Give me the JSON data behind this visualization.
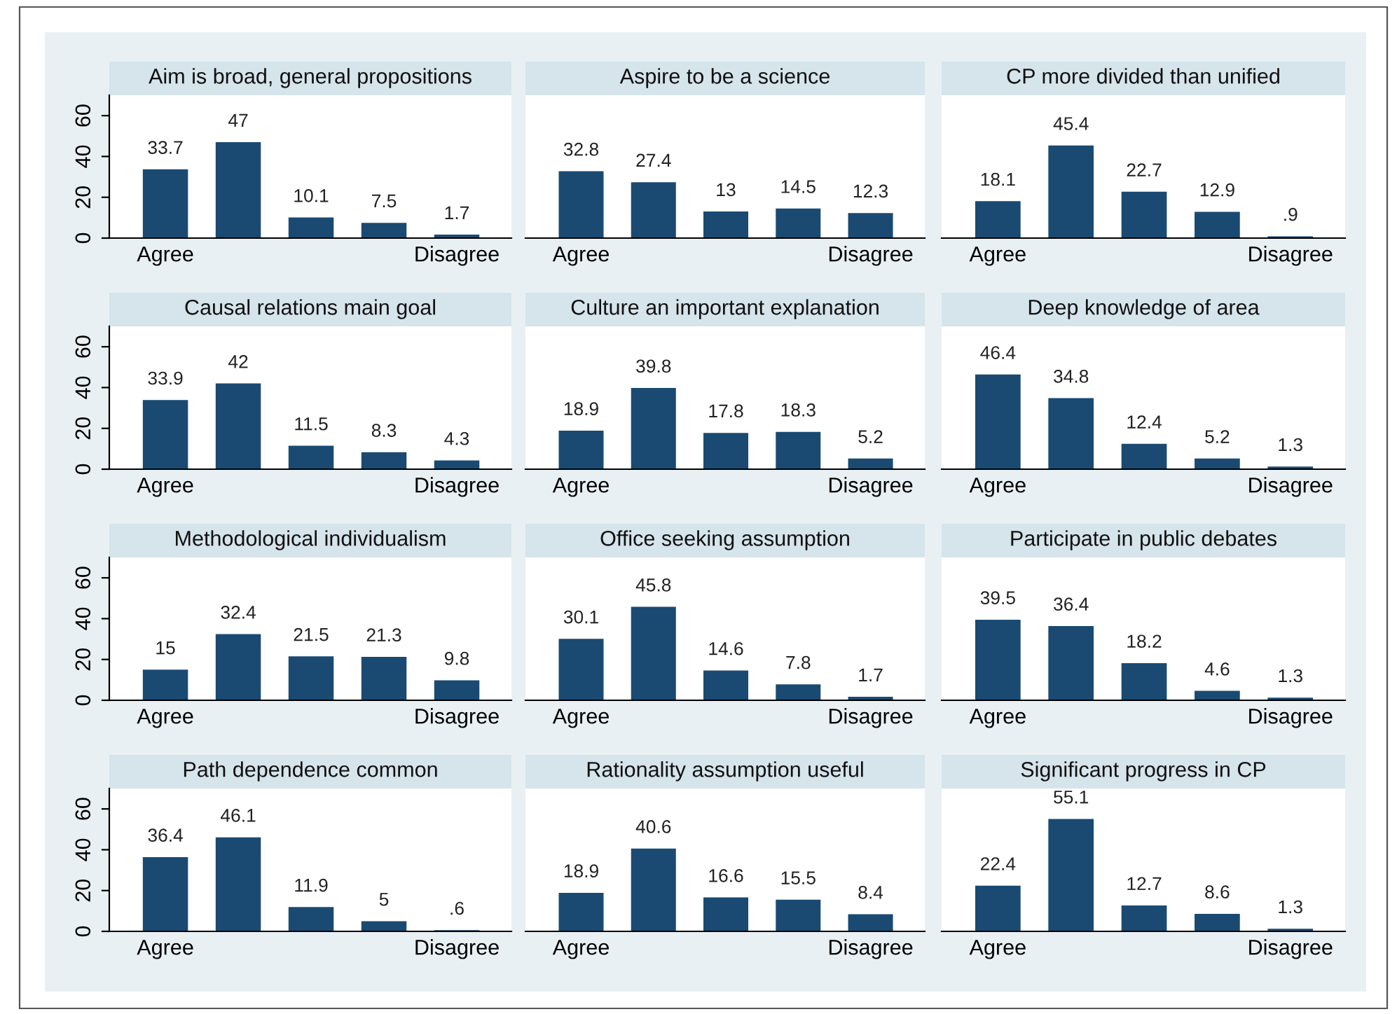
{
  "chart_data": [
    {
      "type": "bar",
      "title": "Aim is broad, general propositions",
      "categories": [
        "Agree",
        null,
        null,
        null,
        "Disagree"
      ],
      "values": [
        33.7,
        47,
        10.1,
        7.5,
        1.7
      ],
      "value_labels": [
        "33.7",
        "47",
        "10.1",
        "7.5",
        "1.7"
      ],
      "color": "#1a4a72",
      "ylim": [
        0,
        70
      ],
      "yticks": [
        0,
        20,
        40,
        60
      ]
    },
    {
      "type": "bar",
      "title": "Aspire to be a science",
      "categories": [
        "Agree",
        null,
        null,
        null,
        "Disagree"
      ],
      "values": [
        32.8,
        27.4,
        13,
        14.5,
        12.3
      ],
      "value_labels": [
        "32.8",
        "27.4",
        "13",
        "14.5",
        "12.3"
      ],
      "color": "#1a4a72",
      "ylim": [
        0,
        70
      ],
      "tick_labels": "x"
    },
    {
      "type": "bar",
      "title": "CP more divided than unified",
      "categories": [
        "Agree",
        null,
        null,
        null,
        "Disagree"
      ],
      "values": [
        18.1,
        45.4,
        22.7,
        12.9,
        0.9
      ],
      "value_labels": [
        "18.1",
        "45.4",
        "22.7",
        "12.9",
        ".9"
      ],
      "color": "#1a4a72",
      "ylim": [
        0,
        70
      ],
      "tick_labels": "x"
    },
    {
      "type": "bar",
      "title": "Causal relations main goal",
      "categories": [
        "Agree",
        null,
        null,
        null,
        "Disagree"
      ],
      "values": [
        33.9,
        42,
        11.5,
        8.3,
        4.3
      ],
      "value_labels": [
        "33.9",
        "42",
        "11.5",
        "8.3",
        "4.3"
      ],
      "color": "#1a4a72",
      "ylim": [
        0,
        70
      ],
      "yticks": [
        0,
        20,
        40,
        60
      ]
    },
    {
      "type": "bar",
      "title": "Culture an important explanation",
      "categories": [
        "Agree",
        null,
        null,
        null,
        "Disagree"
      ],
      "values": [
        18.9,
        39.8,
        17.8,
        18.3,
        5.2
      ],
      "value_labels": [
        "18.9",
        "39.8",
        "17.8",
        "18.3",
        "5.2"
      ],
      "color": "#1a4a72",
      "ylim": [
        0,
        70
      ],
      "tick_labels": "x"
    },
    {
      "type": "bar",
      "title": "Deep knowledge of area",
      "categories": [
        "Agree",
        null,
        null,
        null,
        "Disagree"
      ],
      "values": [
        46.4,
        34.8,
        12.4,
        5.2,
        1.3
      ],
      "value_labels": [
        "46.4",
        "34.8",
        "12.4",
        "5.2",
        "1.3"
      ],
      "color": "#1a4a72",
      "ylim": [
        0,
        70
      ],
      "tick_labels": "x"
    },
    {
      "type": "bar",
      "title": "Methodological individualism",
      "categories": [
        "Agree",
        null,
        null,
        null,
        "Disagree"
      ],
      "values": [
        15,
        32.4,
        21.5,
        21.3,
        9.8
      ],
      "value_labels": [
        "15",
        "32.4",
        "21.5",
        "21.3",
        "9.8"
      ],
      "color": "#1a4a72",
      "ylim": [
        0,
        70
      ],
      "yticks": [
        0,
        20,
        40,
        60
      ]
    },
    {
      "type": "bar",
      "title": "Office seeking assumption",
      "categories": [
        "Agree",
        null,
        null,
        null,
        "Disagree"
      ],
      "values": [
        30.1,
        45.8,
        14.6,
        7.8,
        1.7
      ],
      "value_labels": [
        "30.1",
        "45.8",
        "14.6",
        "7.8",
        "1.7"
      ],
      "color": "#1a4a72",
      "ylim": [
        0,
        70
      ],
      "tick_labels": "x"
    },
    {
      "type": "bar",
      "title": "Participate in public debates",
      "categories": [
        "Agree",
        null,
        null,
        null,
        "Disagree"
      ],
      "values": [
        39.5,
        36.4,
        18.2,
        4.6,
        1.3
      ],
      "value_labels": [
        "39.5",
        "36.4",
        "18.2",
        "4.6",
        "1.3"
      ],
      "color": "#1a4a72",
      "ylim": [
        0,
        70
      ],
      "tick_labels": "x"
    },
    {
      "type": "bar",
      "title": "Path dependence common",
      "categories": [
        "Agree",
        null,
        null,
        null,
        "Disagree"
      ],
      "values": [
        36.4,
        46.1,
        11.9,
        5,
        0.6
      ],
      "value_labels": [
        "36.4",
        "46.1",
        "11.9",
        "5",
        ".6"
      ],
      "color": "#1a4a72",
      "ylim": [
        0,
        70
      ],
      "yticks": [
        0,
        20,
        40,
        60
      ]
    },
    {
      "type": "bar",
      "title": "Rationality assumption useful",
      "categories": [
        "Agree",
        null,
        null,
        null,
        "Disagree"
      ],
      "values": [
        18.9,
        40.6,
        16.6,
        15.5,
        8.4
      ],
      "value_labels": [
        "18.9",
        "40.6",
        "16.6",
        "15.5",
        "8.4"
      ],
      "color": "#1a4a72",
      "ylim": [
        0,
        70
      ],
      "tick_labels": "x"
    },
    {
      "type": "bar",
      "title": "Significant progress in CP",
      "categories": [
        "Agree",
        null,
        null,
        null,
        "Disagree"
      ],
      "values": [
        22.4,
        55.1,
        12.7,
        8.6,
        1.3
      ],
      "value_labels": [
        "22.4",
        "55.1",
        "12.7",
        "8.6",
        "1.3"
      ],
      "color": "#1a4a72",
      "ylim": [
        0,
        70
      ],
      "tick_labels": "x"
    }
  ]
}
